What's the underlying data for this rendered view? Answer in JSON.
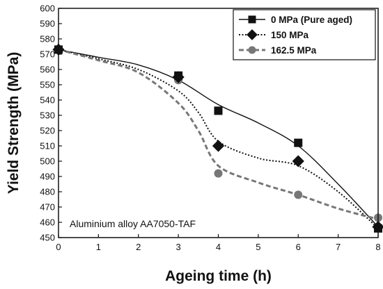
{
  "chart_data": {
    "type": "line",
    "title": "",
    "xlabel": "Ageing time (h)",
    "ylabel": "Yield Strength (MPa)",
    "xlim": [
      0,
      8
    ],
    "ylim": [
      450,
      600
    ],
    "xticks": [
      0,
      1,
      2,
      3,
      4,
      5,
      6,
      7,
      8
    ],
    "yticks": [
      450,
      460,
      470,
      480,
      490,
      500,
      510,
      520,
      530,
      540,
      550,
      560,
      570,
      580,
      590,
      600
    ],
    "grid": false,
    "legend_position": "top-right",
    "annotation": "Aluminium alloy AA7050-TAF",
    "series": [
      {
        "name": "0 MPa (Pure aged)",
        "marker": "square",
        "line_style": "solid",
        "color": "#111111",
        "x": [
          0,
          3,
          4,
          6,
          8
        ],
        "y": [
          573,
          556,
          533,
          512,
          456
        ]
      },
      {
        "name": "150 MPa",
        "marker": "diamond",
        "line_style": "dotted",
        "color": "#111111",
        "x": [
          0,
          3,
          4,
          6,
          8
        ],
        "y": [
          573,
          555,
          510,
          500,
          457
        ]
      },
      {
        "name": "162.5 MPa",
        "marker": "circle",
        "line_style": "dashed",
        "color": "#777777",
        "x": [
          0,
          3,
          4,
          6,
          8
        ],
        "y": [
          573,
          553,
          492,
          478,
          463
        ]
      }
    ],
    "fit_curves": [
      {
        "series": "0 MPa (Pure aged)",
        "x": [
          0,
          1,
          2,
          3,
          4,
          5,
          6,
          7,
          8
        ],
        "y": [
          573,
          568,
          563,
          553,
          537,
          525,
          510,
          485,
          457
        ]
      },
      {
        "series": "150 MPa",
        "x": [
          0,
          1,
          2,
          3,
          3.5,
          4,
          5,
          6,
          7,
          8
        ],
        "y": [
          573,
          567,
          560,
          546,
          532,
          513,
          502,
          497,
          480,
          456
        ]
      },
      {
        "series": "162.5 MPa",
        "x": [
          0,
          1,
          2,
          3,
          3.5,
          4,
          5,
          6,
          7,
          8
        ],
        "y": [
          573,
          566,
          558,
          538,
          520,
          497,
          486,
          478,
          469,
          462
        ]
      }
    ]
  }
}
